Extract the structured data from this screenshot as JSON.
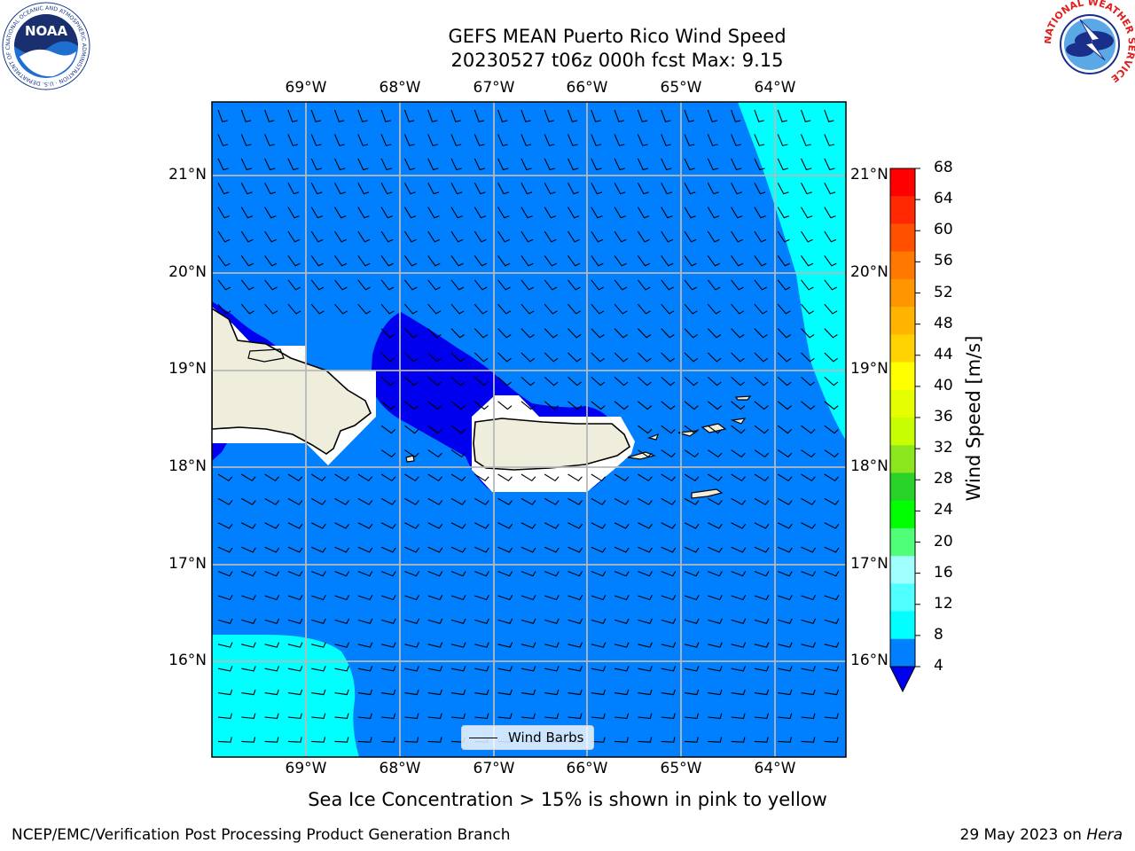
{
  "title": {
    "line1": "GEFS MEAN Puerto Rico Wind Speed",
    "line2": "20230527 t06z 000h fcst   Max: 9.15"
  },
  "map": {
    "lon_labels": [
      "69°W",
      "68°W",
      "67°W",
      "66°W",
      "65°W",
      "64°W"
    ],
    "lat_labels": [
      "21°N",
      "20°N",
      "19°N",
      "18°N",
      "17°N",
      "16°N"
    ],
    "legend_label": "Wind Barbs",
    "land_color": "#efeddc",
    "sea_color_4_8": "#0080ff",
    "sea_color_below_4": "#0000ee",
    "sea_color_8_12": "#00ffff"
  },
  "colorbar": {
    "label": "Wind Speed [m/s]",
    "ticks": [
      "68",
      "64",
      "60",
      "56",
      "52",
      "48",
      "44",
      "40",
      "36",
      "32",
      "28",
      "24",
      "20",
      "16",
      "12",
      "8",
      "4"
    ],
    "colors": [
      "#ff0000",
      "#ff2800",
      "#ff5000",
      "#ff7800",
      "#ff9600",
      "#ffb400",
      "#ffd200",
      "#ffff00",
      "#e6ff00",
      "#c8ff00",
      "#8ce61e",
      "#28d228",
      "#00ff00",
      "#50ff78",
      "#a0ffff",
      "#50ffff",
      "#00ffff",
      "#0080ff"
    ],
    "under_color": "#0000ee"
  },
  "footnote": "Sea Ice Concentration > 15% is shown in pink to yellow",
  "footer": {
    "left": "NCEP/EMC/Verification Post Processing Product Generation Branch",
    "right_date": "29 May 2023 on",
    "right_machine": "Hera"
  },
  "logos": {
    "noaa_text": "NOAA",
    "noaa_ring": "NATIONAL OCEANIC AND ATMOSPHERIC ADMINISTRATION · U.S. DEPARTMENT OF COMMERCE",
    "nws_ring": "NATIONAL WEATHER SERVICE"
  }
}
